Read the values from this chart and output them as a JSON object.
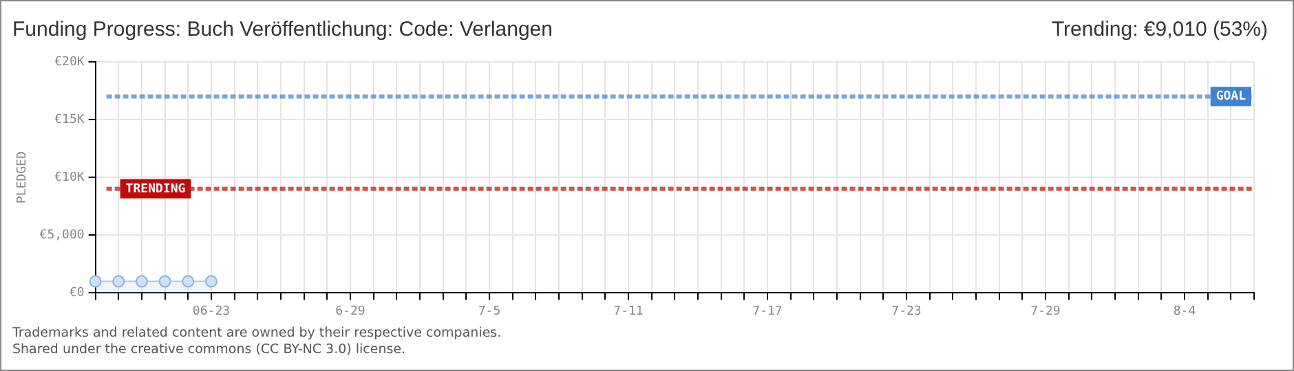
{
  "chart_data": {
    "type": "area",
    "title": "Funding Progress: Buch Veröffentlichung: Code: Verlangen",
    "subtitle": "Trending: €9,010 (53%)",
    "ylabel": "PLEDGED",
    "categories": [
      null,
      null,
      null,
      null,
      null,
      "06-23",
      null,
      null,
      null,
      null,
      null,
      "6-29",
      null,
      null,
      null,
      null,
      null,
      "7-5",
      null,
      null,
      null,
      null,
      null,
      "7-11",
      null,
      null,
      null,
      null,
      null,
      "7-17",
      null,
      null,
      null,
      null,
      null,
      "7-23",
      null,
      null,
      null,
      null,
      null,
      "7-29",
      null,
      null,
      null,
      null,
      null,
      "8-4",
      null,
      null,
      null
    ],
    "series": [
      {
        "color": "#a8c8ee",
        "values": [
          1000,
          1000,
          1000,
          1000,
          1000,
          1000,
          null,
          null,
          null,
          null,
          null,
          null,
          null,
          null,
          null,
          null,
          null,
          null,
          null,
          null,
          null,
          null,
          null,
          null,
          null,
          null,
          null,
          null,
          null,
          null,
          null,
          null,
          null,
          null,
          null,
          null,
          null,
          null,
          null,
          null,
          null,
          null,
          null,
          null,
          null,
          null,
          null,
          null,
          null,
          null,
          null
        ]
      }
    ],
    "ylim": [
      0,
      20000
    ],
    "yticks": [
      {
        "value": 0,
        "label": "€0"
      },
      {
        "value": 5000,
        "label": "€5,000"
      },
      {
        "value": 10000,
        "label": "€10K"
      },
      {
        "value": 15000,
        "label": "€15K"
      },
      {
        "value": 20000,
        "label": "€20K"
      }
    ],
    "ref_lines": [
      {
        "axis": "y",
        "value": 17000,
        "label": "GOAL",
        "color": "#3f82d2",
        "line_style": "dashed"
      },
      {
        "axis": "y",
        "value": 9010,
        "label": "TRENDING",
        "color": "#c00a0a",
        "line_style": "dashed"
      }
    ],
    "annotations": [
      "Trademarks and related content are owned by their respective companies.",
      "Shared under the creative commons (CC BY-NC 3.0) license."
    ],
    "grid": true,
    "legend": false,
    "marker": "circle",
    "line_style": "solid"
  }
}
